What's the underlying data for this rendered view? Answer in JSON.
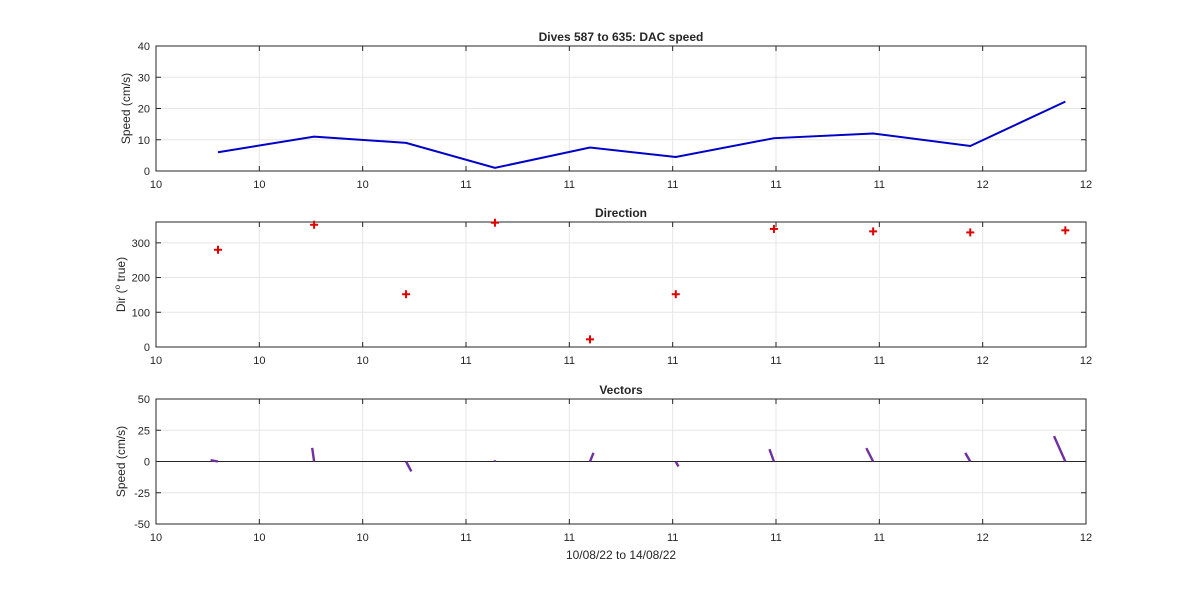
{
  "colors": {
    "speed_line": "#0000C8",
    "direction_marker": "#E00000",
    "vector": "#7030A0",
    "grid": "#E6E6E6",
    "axis": "#262626",
    "background": "#FFFFFF"
  },
  "chart_data": [
    {
      "type": "line",
      "title": "Dives 587 to 635: DAC speed",
      "xlabel": "",
      "ylabel": "Speed (cm/s)",
      "ylim": [
        0,
        40
      ],
      "yticks": [
        "0",
        "10",
        "20",
        "30",
        "40"
      ],
      "xlim": [
        0,
        9
      ],
      "xtick_labels": [
        "10",
        "10",
        "10",
        "11",
        "11",
        "11",
        "11",
        "11",
        "12",
        "12"
      ],
      "grid": true,
      "series": [
        {
          "x": [
            0.6,
            1.53,
            2.42,
            3.28,
            4.2,
            5.03,
            5.98,
            6.94,
            7.88,
            8.8
          ],
          "y": [
            6,
            11,
            9,
            1,
            7.5,
            4.5,
            10.5,
            12,
            8,
            22.2
          ]
        }
      ]
    },
    {
      "type": "scatter",
      "title": "Direction",
      "xlabel": "",
      "ylabel_prefix": "Dir (",
      "ylabel_sup": "o",
      "ylabel_suffix": " true)",
      "ylim": [
        0,
        360
      ],
      "yticks": [
        "0",
        "100",
        "200",
        "300"
      ],
      "xlim": [
        0,
        9
      ],
      "xtick_labels": [
        "10",
        "10",
        "10",
        "11",
        "11",
        "11",
        "11",
        "11",
        "12",
        "12"
      ],
      "grid": true,
      "marker": "+",
      "series": [
        {
          "x": [
            0.6,
            1.53,
            2.42,
            3.28,
            4.2,
            5.03,
            5.98,
            6.94,
            7.88,
            8.8
          ],
          "y": [
            280,
            352,
            152,
            358,
            22,
            152,
            340,
            333,
            330,
            336
          ]
        }
      ]
    },
    {
      "type": "line",
      "title": "Vectors",
      "xlabel": "10/08/22 to 14/08/22",
      "ylabel": "Speed (cm/s)",
      "ylim": [
        -50,
        50
      ],
      "yticks": [
        "-50",
        "-25",
        "0",
        "25",
        "50"
      ],
      "xlim": [
        0,
        9
      ],
      "xtick_labels": [
        "10",
        "10",
        "10",
        "11",
        "11",
        "11",
        "11",
        "11",
        "12",
        "12"
      ],
      "grid": true,
      "zero_line": true,
      "series": [
        {
          "x": [
            0.6,
            1.53,
            2.42,
            3.28,
            4.2,
            5.03,
            5.98,
            6.94,
            7.88,
            8.8
          ],
          "speed": [
            6,
            11,
            9,
            1,
            7.5,
            4.5,
            10.5,
            12,
            8,
            22.2
          ],
          "direction": [
            280,
            352,
            152,
            358,
            22,
            152,
            340,
            333,
            330,
            336
          ]
        }
      ]
    }
  ]
}
